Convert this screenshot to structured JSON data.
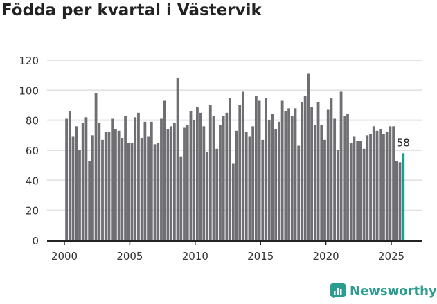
{
  "chart_data": {
    "type": "bar",
    "title": "Födda per kvartal i Västervik",
    "xlabel": "",
    "ylabel": "",
    "ylim": [
      0,
      120
    ],
    "yticks": [
      0,
      20,
      40,
      60,
      80,
      100,
      120
    ],
    "xticks": [
      "2000",
      "2005",
      "2010",
      "2015",
      "2020",
      "2025"
    ],
    "start_year": 2000,
    "grid": true,
    "highlight_label": "58",
    "bar_color": "#6f6e73",
    "highlight_color": "#13a095",
    "values": [
      81,
      86,
      69,
      76,
      60,
      78,
      82,
      53,
      70,
      98,
      78,
      67,
      72,
      72,
      81,
      74,
      73,
      68,
      83,
      65,
      65,
      82,
      85,
      68,
      79,
      69,
      79,
      64,
      65,
      81,
      93,
      74,
      76,
      78,
      108,
      56,
      75,
      77,
      86,
      80,
      89,
      85,
      76,
      59,
      90,
      83,
      61,
      77,
      83,
      85,
      95,
      51,
      73,
      90,
      99,
      72,
      69,
      76,
      96,
      93,
      67,
      95,
      80,
      84,
      74,
      79,
      93,
      86,
      88,
      83,
      88,
      63,
      92,
      96,
      111,
      89,
      77,
      92,
      77,
      67,
      87,
      95,
      81,
      60,
      99,
      83,
      84,
      65,
      69,
      66,
      66,
      61,
      70,
      71,
      76,
      73,
      74,
      71,
      72,
      76,
      76,
      53,
      52,
      58
    ]
  },
  "logo": {
    "text": "Newsworthy"
  }
}
